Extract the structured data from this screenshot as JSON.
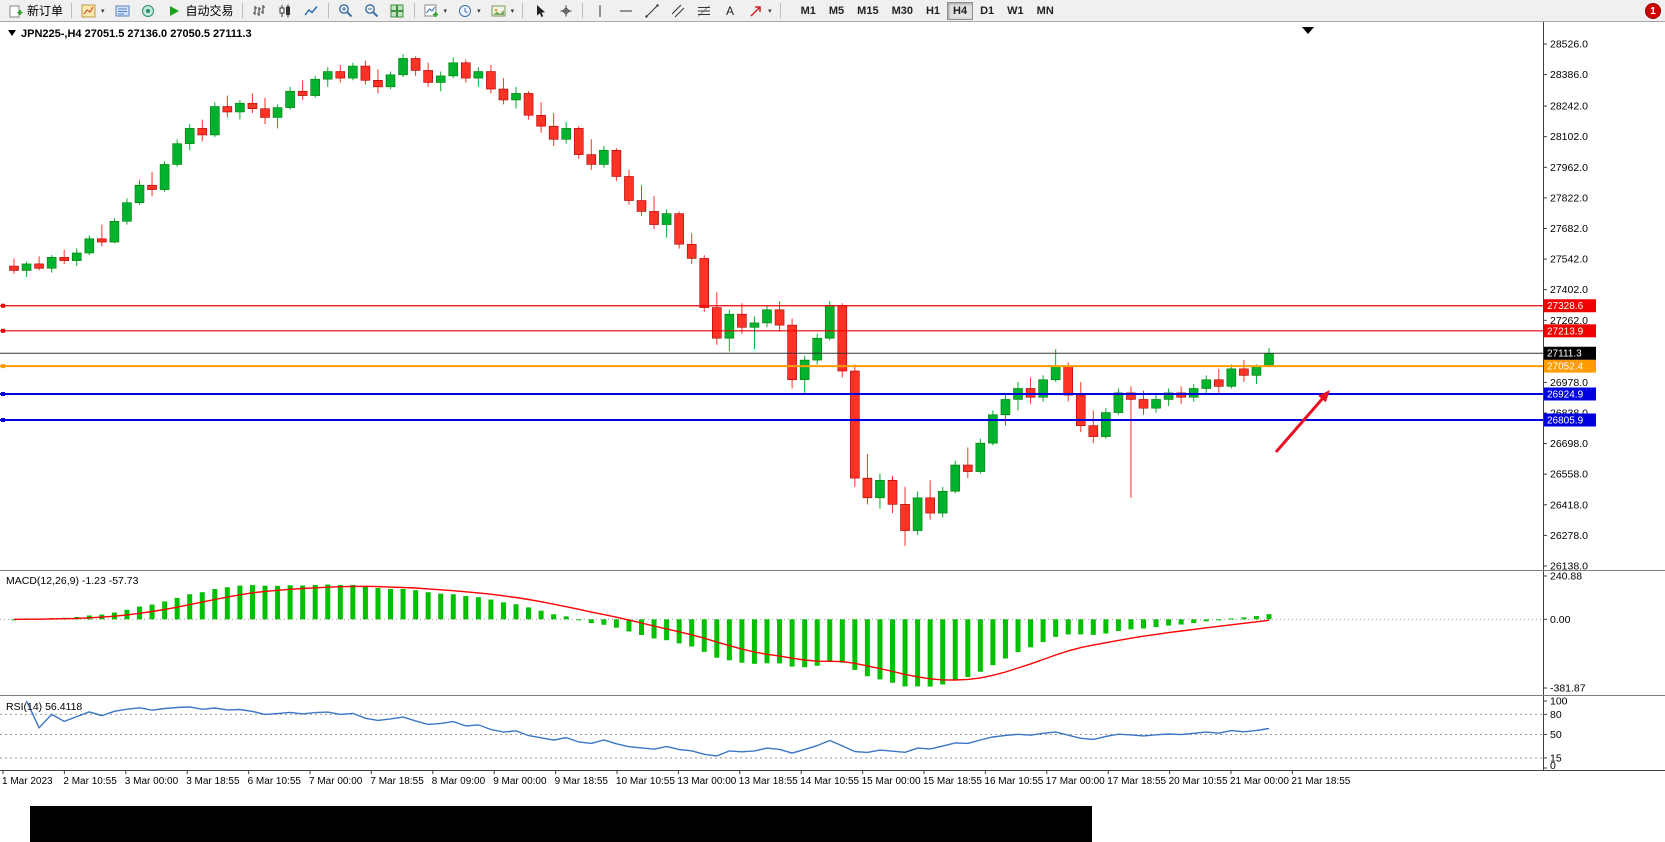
{
  "toolbar": {
    "new_order": "新订单",
    "auto_trading": "自动交易",
    "timeframes": [
      "M1",
      "M5",
      "M15",
      "M30",
      "H1",
      "H4",
      "D1",
      "W1",
      "MN"
    ],
    "active_timeframe": "H4",
    "notification_count": "1"
  },
  "chart": {
    "symbol_title": "JPN225-,H4",
    "ohlc_title": "27051.5 27136.0 27050.5 27111.3",
    "price_axis_labels": [
      "28526.0",
      "28386.0",
      "28242.0",
      "28102.0",
      "27962.0",
      "27822.0",
      "27682.0",
      "27542.0",
      "27402.0",
      "27262.0",
      "27122.0",
      "26978.0",
      "26838.0",
      "26698.0",
      "26558.0",
      "26418.0",
      "26278.0",
      "26138.0"
    ],
    "time_axis_labels": [
      "1 Mar 2023",
      "2 Mar 10:55",
      "3 Mar 00:00",
      "3 Mar 18:55",
      "6 Mar 10:55",
      "7 Mar 00:00",
      "7 Mar 18:55",
      "8 Mar 09:00",
      "9 Mar 00:00",
      "9 Mar 18:55",
      "10 Mar 10:55",
      "13 Mar 00:00",
      "13 Mar 18:55",
      "14 Mar 10:55",
      "15 Mar 00:00",
      "15 Mar 18:55",
      "16 Mar 10:55",
      "17 Mar 00:00",
      "17 Mar 18:55",
      "20 Mar 10:55",
      "21 Mar 00:00",
      "21 Mar 18:55"
    ],
    "horizontal_lines": [
      {
        "value": 27328.6,
        "label": "27328.6",
        "color": "#f00000",
        "width": 1.2
      },
      {
        "value": 27213.9,
        "label": "27213.9",
        "color": "#f00000",
        "width": 1.2
      },
      {
        "value": 27052.4,
        "label": "27052.4",
        "color": "#ff9c00",
        "width": 2
      },
      {
        "value": 26924.9,
        "label": "26924.9",
        "color": "#0000e0",
        "width": 2
      },
      {
        "value": 26805.9,
        "label": "26805.9",
        "color": "#0000e0",
        "width": 2
      }
    ],
    "current_price": {
      "value": 27111.3,
      "label": "27111.3",
      "badge_color": "#000000",
      "line_color": "#333333"
    },
    "colors": {
      "up": "#00b22d",
      "down": "#ff3226",
      "background": "#ffffff",
      "axis_text": "#000000"
    },
    "annotation_arrow": {
      "color": "#e81123",
      "direction": "up-right"
    }
  },
  "indicators": {
    "macd": {
      "label": "MACD(12,26,9) -1.23 -57.73",
      "fast": 12,
      "slow": 26,
      "signal_period": 9,
      "main_value": -1.23,
      "signal_value": -57.73,
      "axis_labels": [
        "240.88",
        "0.00",
        "-381.87"
      ],
      "axis_max": 240.88,
      "axis_min": -381.87,
      "histogram_color": "#00c000",
      "signal_color": "#ff0000"
    },
    "rsi": {
      "label": "RSI(14) 56.4118",
      "period": 14,
      "value": 56.4118,
      "axis_labels": [
        "100",
        "80",
        "50",
        "15",
        "0"
      ],
      "levels": [
        80,
        50,
        15
      ],
      "line_color": "#3a76c4"
    }
  },
  "chart_data": {
    "type": "candlestick",
    "symbol": "JPN225-",
    "timeframe": "H4",
    "title": "JPN225-,H4 27051.5 27136.0 27050.5 27111.3",
    "ylim": [
      26138.0,
      28526.0
    ],
    "last_candle": {
      "open": 27051.5,
      "high": 27136.0,
      "low": 27050.5,
      "close": 27111.3
    },
    "candles_ohlc": [
      [
        27510,
        27545,
        27475,
        27490
      ],
      [
        27490,
        27530,
        27460,
        27520
      ],
      [
        27520,
        27555,
        27490,
        27500
      ],
      [
        27500,
        27560,
        27480,
        27550
      ],
      [
        27550,
        27585,
        27520,
        27535
      ],
      [
        27535,
        27590,
        27510,
        27570
      ],
      [
        27570,
        27650,
        27560,
        27635
      ],
      [
        27635,
        27700,
        27600,
        27620
      ],
      [
        27620,
        27730,
        27615,
        27715
      ],
      [
        27715,
        27820,
        27700,
        27800
      ],
      [
        27800,
        27905,
        27790,
        27880
      ],
      [
        27880,
        27940,
        27830,
        27860
      ],
      [
        27860,
        27990,
        27850,
        27975
      ],
      [
        27975,
        28090,
        27965,
        28070
      ],
      [
        28070,
        28160,
        28040,
        28140
      ],
      [
        28140,
        28180,
        28080,
        28110
      ],
      [
        28110,
        28260,
        28100,
        28240
      ],
      [
        28240,
        28290,
        28190,
        28215
      ],
      [
        28215,
        28270,
        28180,
        28255
      ],
      [
        28255,
        28300,
        28210,
        28230
      ],
      [
        28230,
        28280,
        28160,
        28190
      ],
      [
        28190,
        28250,
        28140,
        28235
      ],
      [
        28235,
        28330,
        28225,
        28310
      ],
      [
        28310,
        28360,
        28270,
        28290
      ],
      [
        28290,
        28380,
        28280,
        28365
      ],
      [
        28365,
        28420,
        28330,
        28400
      ],
      [
        28400,
        28430,
        28350,
        28370
      ],
      [
        28370,
        28440,
        28360,
        28425
      ],
      [
        28425,
        28450,
        28340,
        28360
      ],
      [
        28360,
        28410,
        28300,
        28330
      ],
      [
        28330,
        28400,
        28320,
        28385
      ],
      [
        28385,
        28480,
        28375,
        28460
      ],
      [
        28460,
        28470,
        28380,
        28405
      ],
      [
        28405,
        28440,
        28330,
        28350
      ],
      [
        28350,
        28400,
        28310,
        28380
      ],
      [
        28380,
        28465,
        28370,
        28440
      ],
      [
        28440,
        28455,
        28350,
        28370
      ],
      [
        28370,
        28420,
        28330,
        28400
      ],
      [
        28400,
        28430,
        28300,
        28320
      ],
      [
        28320,
        28370,
        28250,
        28270
      ],
      [
        28270,
        28330,
        28230,
        28300
      ],
      [
        28300,
        28310,
        28180,
        28200
      ],
      [
        28200,
        28260,
        28120,
        28150
      ],
      [
        28150,
        28210,
        28060,
        28090
      ],
      [
        28090,
        28170,
        28070,
        28140
      ],
      [
        28140,
        28150,
        28000,
        28020
      ],
      [
        28020,
        28090,
        27950,
        27975
      ],
      [
        27975,
        28060,
        27960,
        28040
      ],
      [
        28040,
        28050,
        27900,
        27920
      ],
      [
        27920,
        27950,
        27790,
        27810
      ],
      [
        27810,
        27880,
        27740,
        27760
      ],
      [
        27760,
        27830,
        27680,
        27700
      ],
      [
        27700,
        27770,
        27640,
        27750
      ],
      [
        27750,
        27760,
        27590,
        27610
      ],
      [
        27610,
        27660,
        27520,
        27545
      ],
      [
        27545,
        27560,
        27300,
        27320
      ],
      [
        27320,
        27390,
        27150,
        27180
      ],
      [
        27180,
        27310,
        27120,
        27290
      ],
      [
        27290,
        27340,
        27200,
        27230
      ],
      [
        27230,
        27280,
        27130,
        27250
      ],
      [
        27250,
        27330,
        27230,
        27310
      ],
      [
        27310,
        27350,
        27210,
        27240
      ],
      [
        27240,
        27270,
        26950,
        26990
      ],
      [
        26990,
        27100,
        26930,
        27080
      ],
      [
        27080,
        27200,
        27060,
        27180
      ],
      [
        27180,
        27350,
        27170,
        27330
      ],
      [
        27330,
        27340,
        27000,
        27030
      ],
      [
        27030,
        27060,
        26500,
        26540
      ],
      [
        26540,
        26650,
        26420,
        26450
      ],
      [
        26450,
        26560,
        26400,
        26530
      ],
      [
        26530,
        26550,
        26380,
        26420
      ],
      [
        26420,
        26500,
        26230,
        26300
      ],
      [
        26300,
        26480,
        26280,
        26450
      ],
      [
        26450,
        26530,
        26350,
        26380
      ],
      [
        26380,
        26500,
        26360,
        26480
      ],
      [
        26480,
        26620,
        26470,
        26600
      ],
      [
        26600,
        26680,
        26540,
        26570
      ],
      [
        26570,
        26720,
        26560,
        26700
      ],
      [
        26700,
        26850,
        26690,
        26830
      ],
      [
        26830,
        26920,
        26780,
        26900
      ],
      [
        26900,
        26980,
        26850,
        26950
      ],
      [
        26950,
        27000,
        26880,
        26910
      ],
      [
        26910,
        27010,
        26890,
        26990
      ],
      [
        26990,
        27130,
        26980,
        27050
      ],
      [
        27050,
        27070,
        26890,
        26920
      ],
      [
        26920,
        26980,
        26750,
        26780
      ],
      [
        26780,
        26850,
        26700,
        26730
      ],
      [
        26730,
        26860,
        26720,
        26840
      ],
      [
        26840,
        26950,
        26830,
        26930
      ],
      [
        26930,
        26960,
        26450,
        26900
      ],
      [
        26900,
        26940,
        26830,
        26860
      ],
      [
        26860,
        26920,
        26840,
        26900
      ],
      [
        26900,
        26950,
        26870,
        26930
      ],
      [
        26930,
        26960,
        26880,
        26910
      ],
      [
        26910,
        26970,
        26890,
        26950
      ],
      [
        26950,
        27010,
        26920,
        26990
      ],
      [
        26990,
        27040,
        26930,
        26960
      ],
      [
        26960,
        27060,
        26950,
        27040
      ],
      [
        27040,
        27080,
        26980,
        27010
      ],
      [
        27010,
        27060,
        26970,
        27050
      ],
      [
        27051.5,
        27136.0,
        27050.5,
        27111.3
      ]
    ]
  }
}
